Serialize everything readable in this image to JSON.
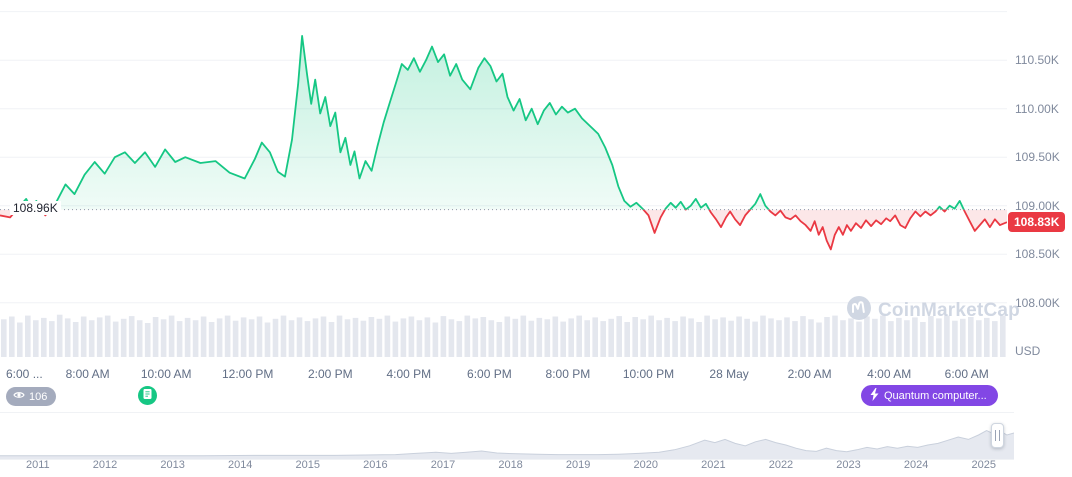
{
  "axis": {
    "currency_label": "USD"
  },
  "watermark": {
    "text": "CoinMarketCap"
  },
  "annotations": {
    "views_badge": {
      "count": "106",
      "icon": "eye-icon"
    },
    "news_marker": {
      "icon": "news-icon"
    },
    "event_badge": {
      "label": "Quantum computer...",
      "icon": "lightning-icon"
    }
  },
  "navigator": {
    "years": [
      "2011",
      "2012",
      "2013",
      "2014",
      "2015",
      "2016",
      "2017",
      "2018",
      "2019",
      "2020",
      "2021",
      "2022",
      "2023",
      "2024",
      "2025"
    ]
  },
  "chart_data": {
    "type": "area",
    "ylabel": "USD",
    "y_range": [
      107.41,
      111.12
    ],
    "baseline_value": 108.96,
    "baseline_label": "108.96K",
    "last_value": 108.83,
    "last_label": "108.83K",
    "up_color": "#16c784",
    "down_color": "#ea3943",
    "grid": true,
    "gridline_prices": [
      111.0,
      110.5,
      110.0,
      109.5,
      109.0,
      108.5,
      108.0
    ],
    "y_ticks": [
      {
        "label": "110.50K",
        "price": 110.5
      },
      {
        "label": "110.00K",
        "price": 110.0
      },
      {
        "label": "109.50K",
        "price": 109.5
      },
      {
        "label": "109.00K",
        "price": 109.0
      },
      {
        "label": "108.50K",
        "price": 108.5
      },
      {
        "label": "108.00K",
        "price": 108.0
      }
    ],
    "x_ticks": [
      {
        "label": "6:00 ...",
        "pct": 0.6,
        "anchor": "start"
      },
      {
        "label": "8:00 AM",
        "pct": 8.7
      },
      {
        "label": "10:00 AM",
        "pct": 16.5
      },
      {
        "label": "12:00 PM",
        "pct": 24.6
      },
      {
        "label": "2:00 PM",
        "pct": 32.8
      },
      {
        "label": "4:00 PM",
        "pct": 40.6
      },
      {
        "label": "6:00 PM",
        "pct": 48.6
      },
      {
        "label": "8:00 PM",
        "pct": 56.4
      },
      {
        "label": "10:00 PM",
        "pct": 64.4
      },
      {
        "label": "28 May",
        "pct": 72.4
      },
      {
        "label": "2:00 AM",
        "pct": 80.4
      },
      {
        "label": "4:00 AM",
        "pct": 88.3
      },
      {
        "label": "6:00 AM",
        "pct": 96.0
      }
    ],
    "price_points": [
      [
        0,
        108.9
      ],
      [
        1,
        108.88
      ],
      [
        2,
        109.0
      ],
      [
        2.6,
        109.07
      ],
      [
        3.1,
        108.97
      ],
      [
        3.6,
        109.05
      ],
      [
        4.5,
        108.9
      ],
      [
        5.5,
        109.02
      ],
      [
        6.5,
        109.22
      ],
      [
        7.4,
        109.12
      ],
      [
        8.4,
        109.32
      ],
      [
        9.4,
        109.45
      ],
      [
        10.4,
        109.33
      ],
      [
        11.4,
        109.5
      ],
      [
        12.4,
        109.55
      ],
      [
        13.4,
        109.44
      ],
      [
        14.4,
        109.55
      ],
      [
        15.4,
        109.4
      ],
      [
        16.4,
        109.58
      ],
      [
        17.4,
        109.45
      ],
      [
        18.4,
        109.5
      ],
      [
        19.9,
        109.44
      ],
      [
        21.4,
        109.46
      ],
      [
        22.8,
        109.34
      ],
      [
        24.3,
        109.28
      ],
      [
        25.3,
        109.48
      ],
      [
        26,
        109.65
      ],
      [
        26.8,
        109.55
      ],
      [
        27.6,
        109.35
      ],
      [
        28.3,
        109.3
      ],
      [
        29,
        109.68
      ],
      [
        29.6,
        110.25
      ],
      [
        30,
        110.75
      ],
      [
        30.5,
        110.35
      ],
      [
        30.9,
        110.05
      ],
      [
        31.3,
        110.3
      ],
      [
        31.8,
        109.95
      ],
      [
        32.3,
        110.12
      ],
      [
        32.8,
        109.82
      ],
      [
        33.3,
        109.96
      ],
      [
        33.8,
        109.55
      ],
      [
        34.3,
        109.7
      ],
      [
        34.8,
        109.42
      ],
      [
        35.2,
        109.56
      ],
      [
        35.7,
        109.28
      ],
      [
        36.3,
        109.46
      ],
      [
        36.9,
        109.36
      ],
      [
        37.5,
        109.62
      ],
      [
        38.1,
        109.86
      ],
      [
        38.7,
        110.06
      ],
      [
        39.3,
        110.26
      ],
      [
        39.9,
        110.46
      ],
      [
        40.5,
        110.4
      ],
      [
        41.1,
        110.52
      ],
      [
        41.7,
        110.38
      ],
      [
        42.3,
        110.5
      ],
      [
        42.9,
        110.64
      ],
      [
        43.5,
        110.48
      ],
      [
        44.1,
        110.56
      ],
      [
        44.7,
        110.34
      ],
      [
        45.3,
        110.46
      ],
      [
        45.9,
        110.3
      ],
      [
        46.7,
        110.2
      ],
      [
        47.5,
        110.42
      ],
      [
        48.1,
        110.52
      ],
      [
        48.7,
        110.44
      ],
      [
        49.3,
        110.28
      ],
      [
        49.9,
        110.36
      ],
      [
        50.4,
        110.12
      ],
      [
        51,
        109.98
      ],
      [
        51.6,
        110.1
      ],
      [
        52.2,
        109.88
      ],
      [
        52.8,
        110.0
      ],
      [
        53.4,
        109.84
      ],
      [
        54,
        109.98
      ],
      [
        54.6,
        110.06
      ],
      [
        55.2,
        109.94
      ],
      [
        55.8,
        110.02
      ],
      [
        56.4,
        109.96
      ],
      [
        57.1,
        110.0
      ],
      [
        57.8,
        109.9
      ],
      [
        58.6,
        109.82
      ],
      [
        59.4,
        109.74
      ],
      [
        60.1,
        109.6
      ],
      [
        60.8,
        109.42
      ],
      [
        61.4,
        109.2
      ],
      [
        62,
        109.05
      ],
      [
        62.6,
        108.99
      ],
      [
        63.2,
        109.03
      ],
      [
        63.8,
        108.97
      ],
      [
        64.4,
        108.9
      ],
      [
        65,
        108.72
      ],
      [
        65.6,
        108.88
      ],
      [
        66.1,
        108.97
      ],
      [
        66.6,
        109.03
      ],
      [
        67.1,
        108.98
      ],
      [
        67.6,
        109.04
      ],
      [
        68.1,
        108.96
      ],
      [
        68.6,
        109.0
      ],
      [
        69.1,
        109.07
      ],
      [
        69.6,
        108.98
      ],
      [
        70.1,
        109.02
      ],
      [
        70.6,
        108.93
      ],
      [
        71.1,
        108.86
      ],
      [
        71.6,
        108.78
      ],
      [
        72.1,
        108.88
      ],
      [
        72.5,
        108.94
      ],
      [
        73,
        108.86
      ],
      [
        73.5,
        108.8
      ],
      [
        74,
        108.9
      ],
      [
        74.5,
        108.96
      ],
      [
        75,
        109.02
      ],
      [
        75.5,
        109.12
      ],
      [
        76,
        109.0
      ],
      [
        76.5,
        108.94
      ],
      [
        77,
        108.9
      ],
      [
        77.5,
        108.95
      ],
      [
        78,
        108.88
      ],
      [
        78.5,
        108.86
      ],
      [
        79,
        108.9
      ],
      [
        79.5,
        108.84
      ],
      [
        80,
        108.8
      ],
      [
        80.5,
        108.74
      ],
      [
        80.9,
        108.84
      ],
      [
        81.3,
        108.7
      ],
      [
        81.7,
        108.78
      ],
      [
        82.1,
        108.64
      ],
      [
        82.5,
        108.55
      ],
      [
        82.9,
        108.7
      ],
      [
        83.3,
        108.78
      ],
      [
        83.7,
        108.7
      ],
      [
        84.1,
        108.8
      ],
      [
        84.5,
        108.74
      ],
      [
        85,
        108.82
      ],
      [
        85.5,
        108.77
      ],
      [
        86,
        108.85
      ],
      [
        86.5,
        108.79
      ],
      [
        87,
        108.85
      ],
      [
        87.5,
        108.81
      ],
      [
        88,
        108.87
      ],
      [
        88.4,
        108.84
      ],
      [
        88.9,
        108.9
      ],
      [
        89.4,
        108.8
      ],
      [
        89.9,
        108.77
      ],
      [
        90.4,
        108.87
      ],
      [
        90.9,
        108.94
      ],
      [
        91.4,
        108.89
      ],
      [
        91.9,
        108.94
      ],
      [
        92.4,
        108.9
      ],
      [
        92.9,
        108.94
      ],
      [
        93.3,
        108.99
      ],
      [
        93.8,
        108.94
      ],
      [
        94.3,
        109.0
      ],
      [
        94.8,
        108.97
      ],
      [
        95.3,
        109.05
      ],
      [
        95.8,
        108.94
      ],
      [
        96.3,
        108.84
      ],
      [
        96.8,
        108.74
      ],
      [
        97.3,
        108.8
      ],
      [
        97.8,
        108.86
      ],
      [
        98.3,
        108.78
      ],
      [
        98.8,
        108.86
      ],
      [
        99.3,
        108.8
      ],
      [
        100,
        108.83
      ]
    ],
    "volume_bars": [
      0.82,
      0.88,
      0.75,
      0.9,
      0.8,
      0.85,
      0.78,
      0.92,
      0.84,
      0.76,
      0.88,
      0.8,
      0.86,
      0.9,
      0.77,
      0.83,
      0.89,
      0.8,
      0.74,
      0.87,
      0.82,
      0.9,
      0.78,
      0.85,
      0.8,
      0.88,
      0.76,
      0.84,
      0.9,
      0.79,
      0.86,
      0.82,
      0.88,
      0.75,
      0.83,
      0.9,
      0.8,
      0.86,
      0.78,
      0.84,
      0.88,
      0.76,
      0.9,
      0.82,
      0.85,
      0.79,
      0.87,
      0.83,
      0.9,
      0.77,
      0.84,
      0.88,
      0.8,
      0.86,
      0.75,
      0.89,
      0.82,
      0.78,
      0.9,
      0.84,
      0.87,
      0.8,
      0.76,
      0.88,
      0.83,
      0.9,
      0.79,
      0.85,
      0.82,
      0.88,
      0.77,
      0.84,
      0.9,
      0.8,
      0.86,
      0.78,
      0.83,
      0.89,
      0.76,
      0.87,
      0.82,
      0.9,
      0.8,
      0.85,
      0.78,
      0.88,
      0.84,
      0.76,
      0.9,
      0.82,
      0.86,
      0.79,
      0.88,
      0.83,
      0.77,
      0.9,
      0.84,
      0.8,
      0.86,
      0.78,
      0.89,
      0.82,
      0.75,
      0.87,
      0.9,
      0.8,
      0.84,
      0.77,
      0.88,
      0.83,
      0.9,
      0.78,
      0.85,
      0.8,
      0.86,
      0.76,
      0.89,
      0.84,
      0.9,
      0.79,
      0.83,
      0.87,
      0.8,
      0.85,
      0.78,
      0.9
    ],
    "navigator_points": [
      [
        0,
        0.03
      ],
      [
        5,
        0.03
      ],
      [
        10,
        0.03
      ],
      [
        15,
        0.03
      ],
      [
        20,
        0.03
      ],
      [
        25,
        0.04
      ],
      [
        30,
        0.04
      ],
      [
        33,
        0.04
      ],
      [
        36,
        0.05
      ],
      [
        39,
        0.06
      ],
      [
        41,
        0.09
      ],
      [
        43,
        0.12
      ],
      [
        44.5,
        0.09
      ],
      [
        46,
        0.12
      ],
      [
        47.5,
        0.15
      ],
      [
        49,
        0.1
      ],
      [
        51,
        0.08
      ],
      [
        53,
        0.07
      ],
      [
        55,
        0.06
      ],
      [
        57,
        0.06
      ],
      [
        59,
        0.06
      ],
      [
        61,
        0.07
      ],
      [
        63,
        0.09
      ],
      [
        65,
        0.12
      ],
      [
        66.5,
        0.18
      ],
      [
        68,
        0.28
      ],
      [
        69.5,
        0.42
      ],
      [
        70.5,
        0.36
      ],
      [
        71.5,
        0.44
      ],
      [
        72.5,
        0.34
      ],
      [
        73.5,
        0.28
      ],
      [
        74.5,
        0.38
      ],
      [
        75.5,
        0.44
      ],
      [
        76.5,
        0.36
      ],
      [
        77.5,
        0.3
      ],
      [
        78.5,
        0.22
      ],
      [
        79.5,
        0.16
      ],
      [
        80.5,
        0.14
      ],
      [
        81.5,
        0.22
      ],
      [
        82.5,
        0.16
      ],
      [
        83.5,
        0.13
      ],
      [
        84.5,
        0.18
      ],
      [
        85.5,
        0.24
      ],
      [
        86.5,
        0.2
      ],
      [
        87.5,
        0.26
      ],
      [
        88.5,
        0.22
      ],
      [
        89.5,
        0.27
      ],
      [
        90.5,
        0.24
      ],
      [
        91.5,
        0.3
      ],
      [
        92.5,
        0.34
      ],
      [
        93.5,
        0.42
      ],
      [
        94.5,
        0.5
      ],
      [
        95.5,
        0.44
      ],
      [
        96.5,
        0.55
      ],
      [
        97.3,
        0.66
      ],
      [
        98,
        0.58
      ],
      [
        98.7,
        0.64
      ],
      [
        99.3,
        0.55
      ],
      [
        100,
        0.6
      ]
    ]
  }
}
